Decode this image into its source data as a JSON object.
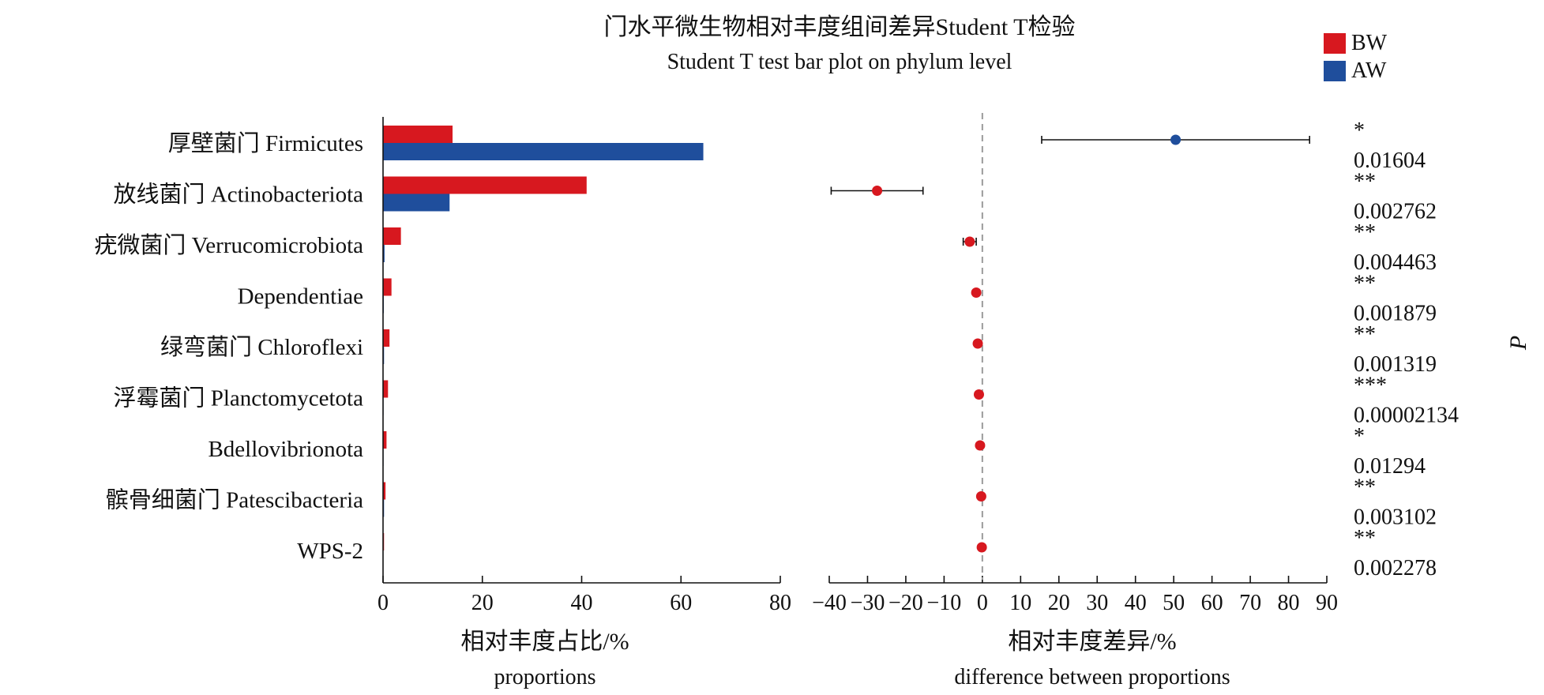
{
  "chart_data": {
    "type": "bar",
    "title": "门水平微生物相对丰度组间差异Student T检验",
    "subtitle": "Student T test bar plot on phylum level",
    "legend": {
      "placement": "top-right",
      "entries": [
        {
          "name": "BW",
          "color": "#d7181f"
        },
        {
          "name": "AW",
          "color": "#1f4e9c"
        }
      ]
    },
    "categories": [
      "厚壁菌门 Firmicutes",
      "放线菌门 Actinobacteriota",
      "疣微菌门 Verrucomicrobiota",
      "Dependentiae",
      "绿弯菌门 Chloroflexi",
      "浮霉菌门 Planctomycetota",
      "Bdellovibrionota",
      "髌骨细菌门 Patescibacteria",
      "WPS-2"
    ],
    "proportions": {
      "xlabel_cn": "相对丰度占比/%",
      "xlabel_en": "proportions",
      "xlim": [
        0,
        80
      ],
      "xticks": [
        0,
        20,
        40,
        60,
        80
      ],
      "series": [
        {
          "name": "BW",
          "values": [
            14.0,
            41.0,
            3.6,
            1.7,
            1.3,
            1.0,
            0.7,
            0.5,
            0.2
          ]
        },
        {
          "name": "AW",
          "values": [
            64.5,
            13.4,
            0.3,
            0.15,
            0.2,
            0.1,
            0.1,
            0.2,
            0.05
          ]
        }
      ]
    },
    "difference": {
      "xlabel_cn": "相对丰度差异/%",
      "xlabel_en": "difference between proportions",
      "xlim": [
        -40,
        90
      ],
      "xticks": [
        -40,
        -30,
        -20,
        -10,
        0,
        10,
        20,
        30,
        40,
        50,
        60,
        70,
        80,
        90
      ],
      "reference_line": 0,
      "values": [
        50.5,
        -27.5,
        -3.3,
        -1.6,
        -1.2,
        -0.9,
        -0.6,
        -0.3,
        -0.15
      ],
      "ci_low": [
        15.5,
        -39.5,
        -5.0,
        -2.0,
        -1.5,
        -1.2,
        -0.9,
        -0.5,
        -0.25
      ],
      "ci_high": [
        85.5,
        -15.5,
        -1.6,
        -1.2,
        -0.9,
        -0.6,
        -0.3,
        -0.1,
        -0.05
      ],
      "point_group": [
        "AW",
        "BW",
        "BW",
        "BW",
        "BW",
        "BW",
        "BW",
        "BW",
        "BW"
      ]
    },
    "p_axis_label": "P",
    "significance": [
      "*",
      "**",
      "**",
      "**",
      "**",
      "***",
      "*",
      "**",
      "**"
    ],
    "p_values": [
      "0.01604",
      "0.002762",
      "0.004463",
      "0.001879",
      "0.001319",
      "0.00002134",
      "0.01294",
      "0.003102",
      "0.002278"
    ]
  }
}
